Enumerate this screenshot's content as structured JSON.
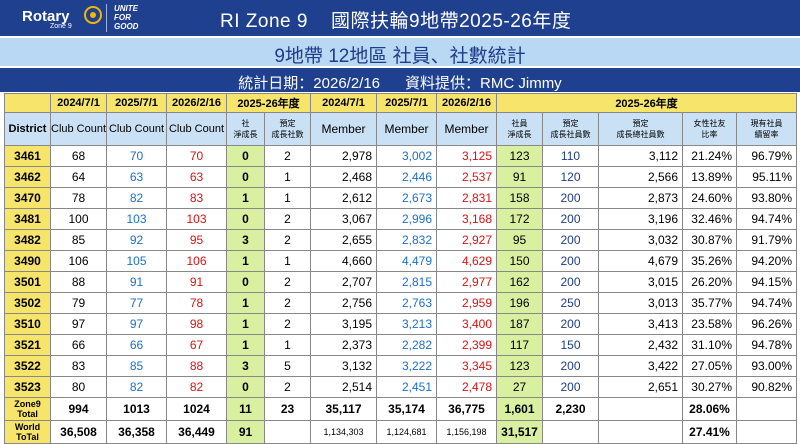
{
  "brand": {
    "rotary": "Rotary",
    "zone": "Zone 9",
    "unite": [
      "UNITE",
      "FOR",
      "GOOD"
    ]
  },
  "title": "RI Zone 9    國際扶輪9地帶2025-26年度",
  "subtitle": "9地帶 12地區 社員、社數統計",
  "info": "統計日期：2026/2/16      資料提供：RMC Jimmy",
  "header_row1": [
    "2024/7/1",
    "2025/7/1",
    "2026/2/16",
    "2025-26年度",
    "2024/7/1",
    "2025/7/1",
    "2026/2/16",
    "2025-26年度"
  ],
  "header_row2": {
    "district": "District",
    "club_count": "Club Count",
    "club_net": "社\n淨成長",
    "club_target": "預定\n成長社數",
    "member": "Member",
    "member_net": "社員\n淨成長",
    "member_target": "預定\n成長社員數",
    "member_total_target": "預定\n成長總社員數",
    "female_ratio": "女性社友\n比率",
    "retention": "現有社員\n續留率"
  },
  "rows": [
    {
      "district": "3461",
      "c24": "68",
      "c25": "70",
      "c26": "70",
      "cnet": "0",
      "ctgt": "2",
      "m24": "2,978",
      "m25": "3,002",
      "m26": "3,125",
      "mnet": "123",
      "mtgt": "110",
      "mtot": "3,112",
      "female": "21.24%",
      "ret": "96.79%"
    },
    {
      "district": "3462",
      "c24": "64",
      "c25": "63",
      "c26": "63",
      "cnet": "0",
      "ctgt": "1",
      "m24": "2,468",
      "m25": "2,446",
      "m26": "2,537",
      "mnet": "91",
      "mtgt": "120",
      "mtot": "2,566",
      "female": "13.89%",
      "ret": "95.11%"
    },
    {
      "district": "3470",
      "c24": "78",
      "c25": "82",
      "c26": "83",
      "cnet": "1",
      "ctgt": "1",
      "m24": "2,612",
      "m25": "2,673",
      "m26": "2,831",
      "mnet": "158",
      "mtgt": "200",
      "mtot": "2,873",
      "female": "24.60%",
      "ret": "93.80%"
    },
    {
      "district": "3481",
      "c24": "100",
      "c25": "103",
      "c26": "103",
      "cnet": "0",
      "ctgt": "2",
      "m24": "3,067",
      "m25": "2,996",
      "m26": "3,168",
      "mnet": "172",
      "mtgt": "200",
      "mtot": "3,196",
      "female": "32.46%",
      "ret": "94.74%"
    },
    {
      "district": "3482",
      "c24": "85",
      "c25": "92",
      "c26": "95",
      "cnet": "3",
      "ctgt": "2",
      "m24": "2,655",
      "m25": "2,832",
      "m26": "2,927",
      "mnet": "95",
      "mtgt": "200",
      "mtot": "3,032",
      "female": "30.87%",
      "ret": "91.79%"
    },
    {
      "district": "3490",
      "c24": "106",
      "c25": "105",
      "c26": "106",
      "cnet": "1",
      "ctgt": "1",
      "m24": "4,660",
      "m25": "4,479",
      "m26": "4,629",
      "mnet": "150",
      "mtgt": "200",
      "mtot": "4,679",
      "female": "35.26%",
      "ret": "94.20%"
    },
    {
      "district": "3501",
      "c24": "88",
      "c25": "91",
      "c26": "91",
      "cnet": "0",
      "ctgt": "2",
      "m24": "2,707",
      "m25": "2,815",
      "m26": "2,977",
      "mnet": "162",
      "mtgt": "200",
      "mtot": "3,015",
      "female": "26.20%",
      "ret": "94.15%"
    },
    {
      "district": "3502",
      "c24": "79",
      "c25": "77",
      "c26": "78",
      "cnet": "1",
      "ctgt": "2",
      "m24": "2,756",
      "m25": "2,763",
      "m26": "2,959",
      "mnet": "196",
      "mtgt": "250",
      "mtot": "3,013",
      "female": "35.77%",
      "ret": "94.74%"
    },
    {
      "district": "3510",
      "c24": "97",
      "c25": "97",
      "c26": "98",
      "cnet": "1",
      "ctgt": "2",
      "m24": "3,195",
      "m25": "3,213",
      "m26": "3,400",
      "mnet": "187",
      "mtgt": "200",
      "mtot": "3,413",
      "female": "23.58%",
      "ret": "96.26%"
    },
    {
      "district": "3521",
      "c24": "66",
      "c25": "66",
      "c26": "67",
      "cnet": "1",
      "ctgt": "1",
      "m24": "2,373",
      "m25": "2,282",
      "m26": "2,399",
      "mnet": "117",
      "mtgt": "150",
      "mtot": "2,432",
      "female": "31.10%",
      "ret": "94.78%"
    },
    {
      "district": "3522",
      "c24": "83",
      "c25": "85",
      "c26": "88",
      "cnet": "3",
      "ctgt": "5",
      "m24": "3,132",
      "m25": "3,222",
      "m26": "3,345",
      "mnet": "123",
      "mtgt": "200",
      "mtot": "3,422",
      "female": "27.05%",
      "ret": "93.00%"
    },
    {
      "district": "3523",
      "c24": "80",
      "c25": "82",
      "c26": "82",
      "cnet": "0",
      "ctgt": "2",
      "m24": "2,514",
      "m25": "2,451",
      "m26": "2,478",
      "mnet": "27",
      "mtgt": "200",
      "mtot": "2,651",
      "female": "30.27%",
      "ret": "90.82%"
    }
  ],
  "zone_total": {
    "label": "Zone9\nTotal",
    "c24": "994",
    "c25": "1013",
    "c26": "1024",
    "cnet": "11",
    "ctgt": "23",
    "m24": "35,117",
    "m25": "35,174",
    "m26": "36,775",
    "mnet": "1,601",
    "mtgt": "2,230",
    "mtot": "",
    "female": "28.06%",
    "ret": ""
  },
  "world_total": {
    "label": "World\nToTal",
    "c24": "36,508",
    "c25": "36,358",
    "c26": "36,449",
    "cnet": "91",
    "ctgt": "",
    "m24": "1,134,303",
    "m25": "1,124,681",
    "m26": "1,156,198",
    "mnet": "31,517",
    "mtgt": "",
    "mtot": "",
    "female": "27.41%",
    "ret": ""
  },
  "colors": {
    "header_navy": "#1f3f8f",
    "light_blue": "#b9d8f3",
    "yellow": "#f7e56b",
    "green": "#d8f0a0",
    "blue_text": "#1a6fcf",
    "red_text": "#e01010"
  }
}
